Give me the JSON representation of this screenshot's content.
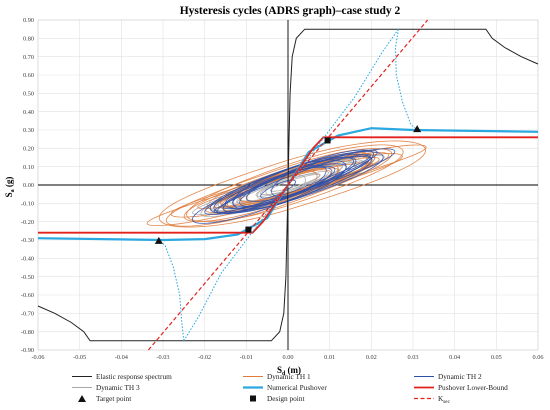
{
  "chart_data": {
    "type": "line",
    "title": "Hysteresis cycles (ADRS graph)–case study 2",
    "xlabel": {
      "main": "S",
      "sub": "d",
      "rest": " (m)"
    },
    "ylabel": {
      "main": "S",
      "sub": "a",
      "rest": " (g)"
    },
    "xlim": [
      -0.06,
      0.06
    ],
    "ylim": [
      -0.9,
      0.9
    ],
    "x_ticks": [
      -0.06,
      -0.05,
      -0.04,
      -0.03,
      -0.02,
      -0.01,
      0.0,
      0.01,
      0.02,
      0.03,
      0.04,
      0.05,
      0.06
    ],
    "x_tick_labels": [
      "-0.06",
      "-0.05",
      "-0.04",
      "-0.03",
      "-0.02",
      "-0.01",
      "0.00",
      "0.01",
      "0.02",
      "0.03",
      "0.04",
      "0.05",
      "0.06"
    ],
    "y_ticks": [
      -0.9,
      -0.8,
      -0.7,
      -0.6,
      -0.5,
      -0.4,
      -0.3,
      -0.2,
      -0.1,
      0.0,
      0.1,
      0.2,
      0.3,
      0.4,
      0.5,
      0.6,
      0.7,
      0.8,
      0.9
    ],
    "y_tick_labels": [
      "-0.90",
      "-0.80",
      "-0.70",
      "-0.60",
      "-0.50",
      "-0.40",
      "-0.30",
      "-0.20",
      "-0.10",
      "0.00",
      "0.10",
      "0.20",
      "0.30",
      "0.40",
      "0.50",
      "0.60",
      "0.70",
      "0.80",
      "0.90"
    ],
    "grid": true,
    "legend_position": "bottom",
    "colors": {
      "spectrum": "#222222",
      "th1": "#e07b39",
      "th2": "#2f4fa8",
      "th3": "#a8a8a8",
      "numerical": "#2aa8e0",
      "lower_bound": "#e3221e",
      "ksec": "#e3221e",
      "points": "#111111"
    },
    "legend": [
      {
        "key": "spectrum",
        "label": "Elastic response spectrum",
        "style": "line"
      },
      {
        "key": "th1",
        "label": "Dynamic TH 1",
        "style": "line"
      },
      {
        "key": "th2",
        "label": "Dynamic TH 2",
        "style": "line"
      },
      {
        "key": "th3",
        "label": "Dynamic TH 3",
        "style": "line"
      },
      {
        "key": "numerical",
        "label": "Numerical Pushover",
        "style": "thick"
      },
      {
        "key": "lower_bound",
        "label": "Pushover Lower-Bound",
        "style": "thick"
      },
      {
        "key": "target",
        "label": "Target point",
        "style": "triangle"
      },
      {
        "key": "design",
        "label": "Design point",
        "style": "square"
      },
      {
        "key": "ksec",
        "label": "K",
        "sub": "sec",
        "style": "dashed"
      }
    ],
    "series": [
      {
        "key": "spectrum",
        "branches": [
          [
            [
              -0.06,
              -0.66
            ],
            [
              -0.056,
              -0.7
            ],
            [
              -0.052,
              -0.75
            ],
            [
              -0.049,
              -0.8
            ],
            [
              -0.0475,
              -0.85
            ],
            [
              -0.004,
              -0.85
            ],
            [
              -0.002,
              -0.8
            ],
            [
              -0.001,
              -0.7
            ],
            [
              -0.0005,
              -0.5
            ],
            [
              -0.0002,
              -0.2
            ],
            [
              0.0,
              0.0
            ]
          ],
          [
            [
              0.0,
              0.0
            ],
            [
              0.0002,
              0.2
            ],
            [
              0.0005,
              0.5
            ],
            [
              0.001,
              0.7
            ],
            [
              0.002,
              0.8
            ],
            [
              0.004,
              0.85
            ],
            [
              0.0475,
              0.85
            ],
            [
              0.049,
              0.8
            ],
            [
              0.052,
              0.75
            ],
            [
              0.056,
              0.7
            ],
            [
              0.06,
              0.66
            ]
          ]
        ]
      },
      {
        "key": "numerical",
        "branches": [
          [
            [
              -0.06,
              -0.29
            ],
            [
              -0.03,
              -0.3
            ],
            [
              -0.02,
              -0.295
            ],
            [
              -0.012,
              -0.27
            ],
            [
              -0.005,
              -0.18
            ],
            [
              0.0,
              0.0
            ],
            [
              0.005,
              0.18
            ],
            [
              0.012,
              0.27
            ],
            [
              0.02,
              0.31
            ],
            [
              0.03,
              0.3
            ],
            [
              0.06,
              0.29
            ]
          ]
        ]
      },
      {
        "key": "lower_bound",
        "branches": [
          [
            [
              -0.06,
              -0.26
            ],
            [
              -0.0085,
              -0.26
            ],
            [
              -0.006,
              -0.2
            ],
            [
              -0.003,
              -0.1
            ],
            [
              0.0,
              0.0
            ],
            [
              0.003,
              0.1
            ],
            [
              0.006,
              0.2
            ],
            [
              0.0085,
              0.26
            ],
            [
              0.06,
              0.26
            ]
          ]
        ]
      },
      {
        "key": "numerical_dotted",
        "branches": [
          [
            [
              0.0265,
              0.85
            ],
            [
              0.0258,
              0.75
            ],
            [
              0.026,
              0.6
            ],
            [
              0.0275,
              0.45
            ],
            [
              0.0295,
              0.33
            ],
            [
              0.031,
              0.3
            ]
          ],
          [
            [
              0.0265,
              0.85
            ],
            [
              0.0225,
              0.72
            ],
            [
              0.016,
              0.48
            ],
            [
              0.011,
              0.33
            ],
            [
              0.006,
              0.18
            ],
            [
              0.0,
              0.0
            ]
          ],
          [
            [
              -0.025,
              -0.85
            ],
            [
              -0.0255,
              -0.75
            ],
            [
              -0.026,
              -0.6
            ],
            [
              -0.0275,
              -0.45
            ],
            [
              -0.0295,
              -0.33
            ],
            [
              -0.031,
              -0.3
            ]
          ],
          [
            [
              -0.025,
              -0.85
            ],
            [
              -0.0215,
              -0.72
            ],
            [
              -0.016,
              -0.48
            ],
            [
              -0.011,
              -0.33
            ],
            [
              -0.006,
              -0.18
            ],
            [
              0.0,
              0.0
            ]
          ]
        ]
      },
      {
        "key": "ksec",
        "branches": [
          [
            [
              -0.0335,
              -0.9
            ],
            [
              0.0335,
              0.9
            ]
          ]
        ]
      }
    ],
    "loops": [
      {
        "key": "th3",
        "count": 16,
        "amp_lo": 0.0035,
        "amp_hi": 0.024,
        "slope": 7.6,
        "width": 0.07,
        "seed": 11
      },
      {
        "key": "th1",
        "count": 15,
        "amp_lo": 0.005,
        "amp_hi": 0.034,
        "slope": 7.0,
        "width": 0.09,
        "seed": 5
      },
      {
        "key": "th2",
        "count": 15,
        "amp_lo": 0.004,
        "amp_hi": 0.024,
        "slope": 8.6,
        "width": 0.085,
        "seed": 23
      }
    ],
    "target_points": [
      [
        -0.031,
        -0.305
      ],
      [
        0.031,
        0.305
      ]
    ],
    "design_points": [
      [
        -0.0095,
        -0.243
      ],
      [
        0.0095,
        0.243
      ]
    ]
  }
}
